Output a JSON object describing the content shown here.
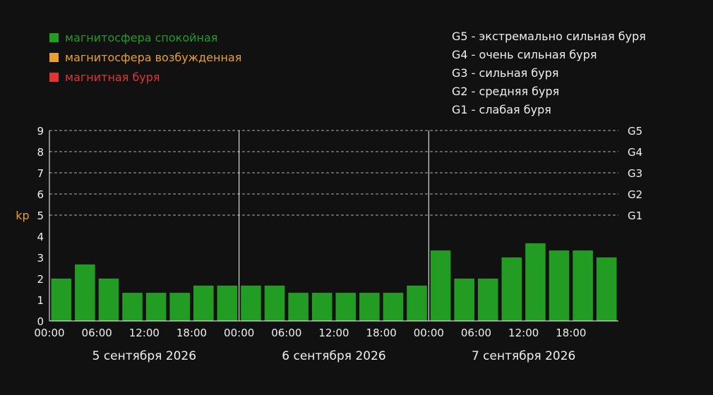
{
  "colors": {
    "background": "#111111",
    "text": "#f0f0f0",
    "quiet": "#229c22",
    "active": "#e8a030",
    "storm": "#e03535",
    "grid": "#cccccc"
  },
  "legend": [
    {
      "label": "магнитосфера спокойная",
      "color": "#229c22"
    },
    {
      "label": "магнитосфера возбужденная",
      "color": "#e8a030"
    },
    {
      "label": "магнитная буря",
      "color": "#e03535"
    }
  ],
  "storm_scale": [
    "G5 - экстремально сильная буря",
    "G4 - очень сильная буря",
    "G3 - сильная буря",
    "G2 - средняя буря",
    "G1 - слабая буря"
  ],
  "chart_data": {
    "type": "bar",
    "ylabel": "kp",
    "ylim": [
      0,
      9
    ],
    "yticks": [
      "0",
      "1",
      "2",
      "3",
      "4",
      "5",
      "6",
      "7",
      "8",
      "9"
    ],
    "g_levels": [
      {
        "label": "G1",
        "y": 5
      },
      {
        "label": "G2",
        "y": 6
      },
      {
        "label": "G3",
        "y": 7
      },
      {
        "label": "G4",
        "y": 8
      },
      {
        "label": "G5",
        "y": 9
      }
    ],
    "xtick_labels": [
      "00:00",
      "06:00",
      "12:00",
      "18:00"
    ],
    "days": [
      {
        "label": "5 сентября 2026",
        "values": [
          2.0,
          2.67,
          2.0,
          1.33,
          1.33,
          1.33,
          1.67,
          1.67
        ]
      },
      {
        "label": "6 сентября 2026",
        "values": [
          1.67,
          1.67,
          1.33,
          1.33,
          1.33,
          1.33,
          1.33,
          1.67
        ]
      },
      {
        "label": "7 сентября 2026",
        "values": [
          3.33,
          2.0,
          2.0,
          3.0,
          3.67,
          3.33,
          3.33,
          3.0
        ]
      }
    ],
    "grid": true
  }
}
